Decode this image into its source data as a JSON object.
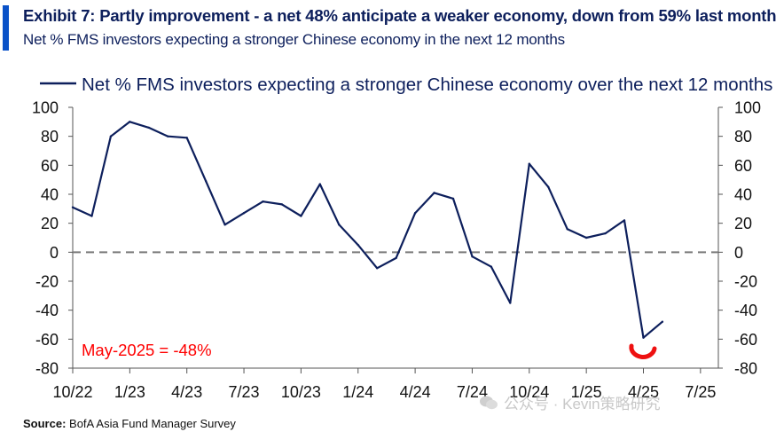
{
  "header": {
    "title": "Exhibit 7: Partly improvement - a net 48% anticipate a weaker economy, down from 59% last month",
    "subtitle": "Net % FMS investors expecting a stronger Chinese economy in the next 12 months",
    "accent_color": "#0a52c8"
  },
  "chart_data": {
    "type": "line",
    "title": "",
    "xlabel": "",
    "ylabel": "",
    "ylim": [
      -80,
      100
    ],
    "y_ticks": [
      100,
      80,
      60,
      40,
      20,
      0,
      -20,
      -40,
      -60,
      -80
    ],
    "y_tick_labels": [
      "100",
      "80",
      "60",
      "40",
      "20",
      "0",
      "-20",
      "-40",
      "-60",
      "-80"
    ],
    "x_tick_labels": [
      "10/22",
      "1/23",
      "4/23",
      "7/23",
      "10/23",
      "1/24",
      "4/24",
      "7/24",
      "10/24",
      "1/25",
      "4/25",
      "7/25"
    ],
    "legend_position": "top",
    "grid": false,
    "zero_line": "dashed",
    "series": [
      {
        "name": "Net % FMS investors expecting a stronger Chinese economy over the next 12 months",
        "color": "#0d1f5c",
        "x": [
          "2022-10",
          "2022-11",
          "2022-12",
          "2023-01",
          "2023-02",
          "2023-03",
          "2023-04",
          "2023-05",
          "2023-06",
          "2023-07",
          "2023-08",
          "2023-09",
          "2023-10",
          "2023-11",
          "2023-12",
          "2024-01",
          "2024-02",
          "2024-03",
          "2024-04",
          "2024-05",
          "2024-06",
          "2024-07",
          "2024-08",
          "2024-09",
          "2024-10",
          "2024-11",
          "2024-12",
          "2025-01",
          "2025-02",
          "2025-03",
          "2025-04",
          "2025-05"
        ],
        "values": [
          31,
          25,
          80,
          90,
          86,
          80,
          79,
          49,
          19,
          27,
          35,
          33,
          25,
          47,
          19,
          5,
          -11,
          -4,
          27,
          41,
          37,
          -3,
          -10,
          -35,
          61,
          45,
          16,
          10,
          13,
          22,
          -59,
          -48
        ]
      }
    ],
    "annotation": {
      "text": "May-2025 = -48%",
      "color": "#ff0000"
    }
  },
  "footer": {
    "source_label": "Source:",
    "source_text": "BofA Asia Fund Manager Survey"
  },
  "watermark": {
    "text": "公众号 · Kevin策略研究"
  }
}
